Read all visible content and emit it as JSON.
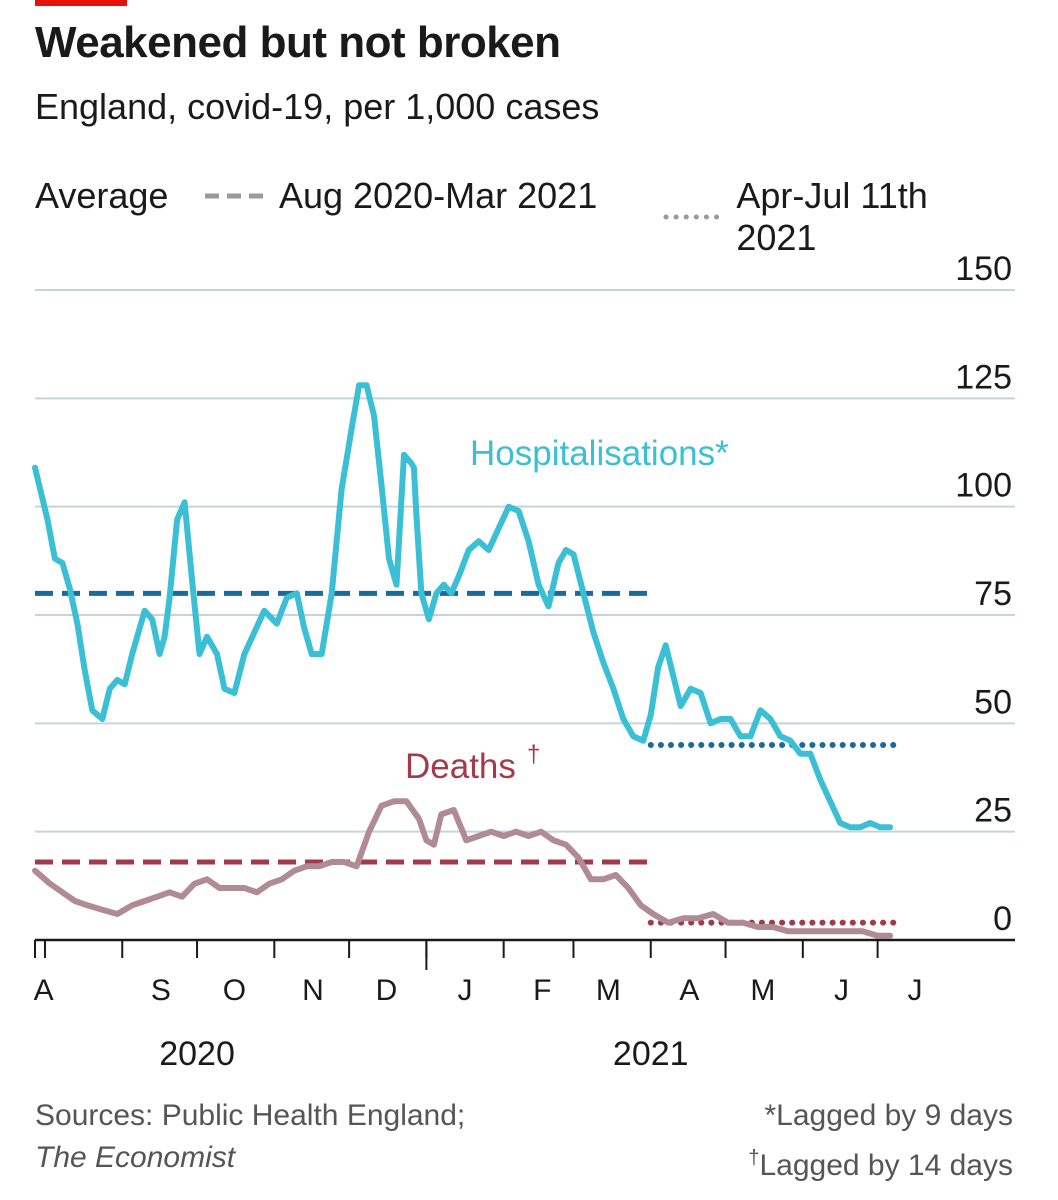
{
  "title": "Weakened but not broken",
  "subtitle": "England, covid-19, per 1,000 cases",
  "legend": {
    "label": "Average",
    "items": [
      {
        "label": "Aug 2020-Mar 2021",
        "style": "dashed"
      },
      {
        "label": "Apr-Jul 11th 2021",
        "style": "dotted"
      }
    ]
  },
  "footer": {
    "sources": "Sources: Public Health England;",
    "sources_publication": "The Economist",
    "note1": "*Lagged by 9 days",
    "note2_mark": "†",
    "note2": "Lagged by 14 days"
  },
  "colors": {
    "hospitalisations": "#3bbfd4",
    "deaths": "#b08b96",
    "hosp_avg": "#1b6a9c",
    "deaths_avg": "#a33a4c",
    "deaths_label": "#a33a4c",
    "grid": "#c5d3dc",
    "legend_swatch": "#9a9a9a"
  },
  "chart_data": {
    "type": "line",
    "ylim": [
      0,
      150
    ],
    "yticks": [
      "150",
      "125",
      "100",
      "75",
      "50",
      "25",
      "0"
    ],
    "ytick_values": [
      150,
      125,
      100,
      75,
      50,
      25,
      0
    ],
    "x_start": "2020-07-28",
    "x_end": "2021-07-16",
    "month_ticks": [
      "2020-08-01",
      "2020-09-01",
      "2020-10-01",
      "2020-11-01",
      "2020-12-01",
      "2021-01-01",
      "2021-02-01",
      "2021-03-01",
      "2021-04-01",
      "2021-05-01",
      "2021-06-01",
      "2021-07-01"
    ],
    "month_labels": [
      "A",
      "S",
      "O",
      "N",
      "D",
      "J",
      "F",
      "M",
      "A",
      "M",
      "J",
      "J"
    ],
    "years": [
      {
        "label": "2020",
        "date": "2020-10-01"
      },
      {
        "label": "2021",
        "date": "2021-04-01"
      }
    ],
    "series": [
      {
        "name": "Hospitalisations*",
        "x": [
          "2020-07-28",
          "2020-08-02",
          "2020-08-05",
          "2020-08-08",
          "2020-08-11",
          "2020-08-14",
          "2020-08-17",
          "2020-08-20",
          "2020-08-24",
          "2020-08-27",
          "2020-08-30",
          "2020-09-02",
          "2020-09-05",
          "2020-09-08",
          "2020-09-10",
          "2020-09-13",
          "2020-09-16",
          "2020-09-18",
          "2020-09-20",
          "2020-09-23",
          "2020-09-26",
          "2020-09-29",
          "2020-10-02",
          "2020-10-05",
          "2020-10-09",
          "2020-10-12",
          "2020-10-16",
          "2020-10-20",
          "2020-10-24",
          "2020-10-28",
          "2020-11-02",
          "2020-11-06",
          "2020-11-10",
          "2020-11-13",
          "2020-11-16",
          "2020-11-20",
          "2020-11-24",
          "2020-11-28",
          "2020-12-02",
          "2020-12-05",
          "2020-12-08",
          "2020-12-11",
          "2020-12-14",
          "2020-12-17",
          "2020-12-20",
          "2020-12-23",
          "2020-12-26",
          "2020-12-27",
          "2020-12-28",
          "2020-12-30",
          "2021-01-02",
          "2021-01-05",
          "2021-01-08",
          "2021-01-11",
          "2021-01-14",
          "2021-01-18",
          "2021-01-22",
          "2021-01-26",
          "2021-01-30",
          "2021-02-03",
          "2021-02-07",
          "2021-02-11",
          "2021-02-15",
          "2021-02-19",
          "2021-02-23",
          "2021-02-26",
          "2021-03-01",
          "2021-03-05",
          "2021-03-09",
          "2021-03-13",
          "2021-03-17",
          "2021-03-21",
          "2021-03-25",
          "2021-03-29",
          "2021-04-01",
          "2021-04-04",
          "2021-04-07",
          "2021-04-10",
          "2021-04-13",
          "2021-04-17",
          "2021-04-21",
          "2021-04-25",
          "2021-04-29",
          "2021-05-03",
          "2021-05-07",
          "2021-05-11",
          "2021-05-15",
          "2021-05-19",
          "2021-05-23",
          "2021-05-27",
          "2021-05-31",
          "2021-06-04",
          "2021-06-08",
          "2021-06-12",
          "2021-06-16",
          "2021-06-20",
          "2021-06-24",
          "2021-06-28",
          "2021-07-02",
          "2021-07-06"
        ],
        "values": [
          109,
          97,
          88,
          87,
          81,
          73,
          62,
          53,
          51,
          58,
          60,
          59,
          66,
          72,
          76,
          74,
          66,
          70,
          79,
          97,
          101,
          83,
          66,
          70,
          66,
          58,
          57,
          66,
          71,
          76,
          73,
          79,
          80,
          72,
          66,
          66,
          80,
          104,
          118,
          128,
          128,
          121,
          105,
          88,
          82,
          112,
          110,
          109,
          98,
          80,
          74,
          80,
          82,
          80,
          84,
          90,
          92,
          90,
          95,
          100,
          99,
          92,
          82,
          77,
          87,
          90,
          89,
          80,
          71,
          64,
          58,
          51,
          47,
          46,
          52,
          63,
          68,
          61,
          54,
          58,
          57,
          50,
          51,
          51,
          47,
          47,
          53,
          51,
          47,
          46,
          43,
          43,
          37,
          32,
          27,
          26,
          26,
          27,
          26,
          26
        ]
      },
      {
        "name": "Deaths†",
        "x": [
          "2020-07-28",
          "2020-08-03",
          "2020-08-08",
          "2020-08-13",
          "2020-08-18",
          "2020-08-24",
          "2020-08-30",
          "2020-09-05",
          "2020-09-10",
          "2020-09-15",
          "2020-09-20",
          "2020-09-25",
          "2020-09-30",
          "2020-10-05",
          "2020-10-10",
          "2020-10-15",
          "2020-10-20",
          "2020-10-25",
          "2020-10-30",
          "2020-11-04",
          "2020-11-09",
          "2020-11-14",
          "2020-11-19",
          "2020-11-24",
          "2020-11-29",
          "2020-12-04",
          "2020-12-09",
          "2020-12-14",
          "2020-12-19",
          "2020-12-24",
          "2020-12-29",
          "2021-01-01",
          "2021-01-04",
          "2021-01-07",
          "2021-01-12",
          "2021-01-17",
          "2021-01-22",
          "2021-01-27",
          "2021-02-01",
          "2021-02-06",
          "2021-02-11",
          "2021-02-16",
          "2021-02-21",
          "2021-02-26",
          "2021-03-03",
          "2021-03-08",
          "2021-03-13",
          "2021-03-18",
          "2021-03-23",
          "2021-03-28",
          "2021-04-02",
          "2021-04-08",
          "2021-04-14",
          "2021-04-20",
          "2021-04-26",
          "2021-05-02",
          "2021-05-08",
          "2021-05-14",
          "2021-05-20",
          "2021-05-26",
          "2021-06-01",
          "2021-06-07",
          "2021-06-13",
          "2021-06-19",
          "2021-06-25",
          "2021-07-01",
          "2021-07-06"
        ],
        "values": [
          16,
          13,
          11,
          9,
          8,
          7,
          6,
          8,
          9,
          10,
          11,
          10,
          13,
          14,
          12,
          12,
          12,
          11,
          13,
          14,
          16,
          17,
          17,
          18,
          18,
          17,
          25,
          31,
          32,
          32,
          28,
          23,
          22,
          29,
          30,
          23,
          24,
          25,
          24,
          25,
          24,
          25,
          23,
          22,
          19,
          14,
          14,
          15,
          12,
          8,
          6,
          4,
          5,
          5,
          6,
          4,
          4,
          3,
          3,
          2,
          2,
          2,
          2,
          2,
          2,
          1,
          1
        ]
      }
    ],
    "averages": [
      {
        "series": "Hospitalisations*",
        "period": "Aug 2020-Mar 2021",
        "value": 80,
        "from": "2020-07-28",
        "to": "2021-04-01",
        "style": "dashed"
      },
      {
        "series": "Hospitalisations*",
        "period": "Apr-Jul 11th 2021",
        "value": 45,
        "from": "2021-04-01",
        "to": "2021-07-11",
        "style": "dotted"
      },
      {
        "series": "Deaths†",
        "period": "Aug 2020-Mar 2021",
        "value": 18,
        "from": "2020-07-28",
        "to": "2021-04-01",
        "style": "dashed"
      },
      {
        "series": "Deaths†",
        "period": "Apr-Jul 11th 2021",
        "value": 4,
        "from": "2021-04-01",
        "to": "2021-07-11",
        "style": "dotted"
      }
    ],
    "annotations": [
      {
        "text": "Hospitalisations*",
        "series": "Hospitalisations*"
      },
      {
        "text": "Deaths",
        "mark": "†",
        "series": "Deaths†"
      }
    ]
  }
}
